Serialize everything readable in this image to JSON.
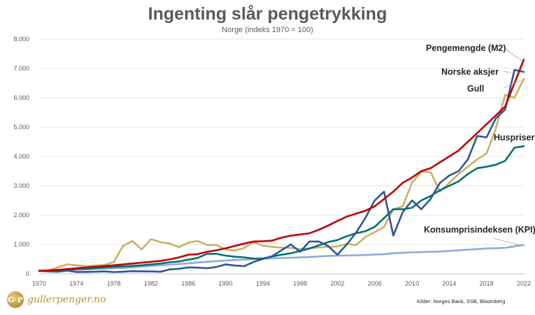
{
  "chart_data": {
    "type": "line",
    "title": "Ingenting slår pengetrykking",
    "subtitle": "Norge (indeks 1970 = 100)",
    "source": "Kilder: Norges Bank, SSB, Bloomberg",
    "logo_text": "gullerpenger.no",
    "logo_mark": "G·P",
    "xlabel": "",
    "ylabel": "",
    "xlim": [
      1970,
      2022
    ],
    "ylim": [
      0,
      8000
    ],
    "x_ticks": [
      "1970",
      "1974",
      "1978",
      "1982",
      "1986",
      "1990",
      "1994",
      "1998",
      "2002",
      "2006",
      "2010",
      "2014",
      "2018",
      "2022"
    ],
    "y_ticks": [
      "0",
      "1.000",
      "2.000",
      "3.000",
      "4.000",
      "5.000",
      "6.000",
      "7.000",
      "8.000"
    ],
    "grid": "horizontal",
    "x": [
      1970,
      1971,
      1972,
      1973,
      1974,
      1975,
      1976,
      1977,
      1978,
      1979,
      1980,
      1981,
      1982,
      1983,
      1984,
      1985,
      1986,
      1987,
      1988,
      1989,
      1990,
      1991,
      1992,
      1993,
      1994,
      1995,
      1996,
      1997,
      1998,
      1999,
      2000,
      2001,
      2002,
      2003,
      2004,
      2005,
      2006,
      2007,
      2008,
      2009,
      2010,
      2011,
      2012,
      2013,
      2014,
      2015,
      2016,
      2017,
      2018,
      2019,
      2020,
      2021,
      2022
    ],
    "series": [
      {
        "name": "Pengemengde (M2)",
        "color": "#c00000",
        "values": [
          100,
          115,
          135,
          160,
          190,
          215,
          240,
          265,
          290,
          320,
          350,
          380,
          410,
          440,
          490,
          560,
          650,
          670,
          750,
          800,
          870,
          950,
          1030,
          1100,
          1110,
          1130,
          1230,
          1300,
          1340,
          1380,
          1500,
          1640,
          1800,
          1950,
          2050,
          2150,
          2300,
          2550,
          2800,
          3100,
          3280,
          3500,
          3600,
          3800,
          4000,
          4200,
          4500,
          4800,
          5100,
          5400,
          5700,
          6500,
          7300
        ]
      },
      {
        "name": "Norske aksjer",
        "color": "#2f5597",
        "values": [
          100,
          80,
          70,
          110,
          60,
          65,
          70,
          80,
          60,
          70,
          90,
          80,
          80,
          70,
          150,
          170,
          220,
          210,
          190,
          230,
          320,
          280,
          260,
          400,
          510,
          600,
          800,
          1000,
          750,
          1100,
          1100,
          950,
          650,
          1000,
          1400,
          1900,
          2500,
          2800,
          1300,
          2100,
          2500,
          2200,
          2550,
          3100,
          3350,
          3500,
          3900,
          4700,
          4650,
          5300,
          5600,
          6950,
          6880
        ]
      },
      {
        "name": "Gull",
        "color": "#c9b161",
        "values": [
          100,
          120,
          220,
          320,
          290,
          260,
          280,
          300,
          400,
          950,
          1120,
          830,
          1180,
          1080,
          1030,
          910,
          1060,
          1120,
          980,
          980,
          830,
          790,
          880,
          1080,
          960,
          920,
          890,
          880,
          840,
          870,
          900,
          920,
          930,
          1020,
          980,
          1250,
          1420,
          1600,
          2200,
          2300,
          3100,
          3480,
          3470,
          2800,
          3100,
          3400,
          3650,
          3900,
          4100,
          4950,
          6100,
          6000,
          6650
        ]
      },
      {
        "name": "Huspriser",
        "color": "#007070",
        "values": [
          100,
          110,
          125,
          140,
          160,
          175,
          195,
          215,
          235,
          250,
          270,
          290,
          320,
          350,
          390,
          420,
          480,
          540,
          680,
          680,
          620,
          580,
          560,
          520,
          520,
          590,
          650,
          700,
          780,
          860,
          970,
          1080,
          1150,
          1280,
          1380,
          1450,
          1600,
          1900,
          2200,
          2200,
          2250,
          2500,
          2650,
          2850,
          3000,
          3150,
          3400,
          3600,
          3650,
          3720,
          3850,
          4300,
          4350
        ]
      },
      {
        "name": "Konsumprisindeksen (KPI)",
        "color": "#8eaadb",
        "values": [
          100,
          106,
          113,
          121,
          132,
          147,
          161,
          176,
          190,
          199,
          220,
          245,
          270,
          290,
          310,
          330,
          355,
          385,
          410,
          430,
          455,
          470,
          480,
          500,
          510,
          525,
          535,
          550,
          560,
          575,
          590,
          610,
          620,
          625,
          630,
          640,
          655,
          670,
          700,
          715,
          730,
          740,
          750,
          760,
          780,
          800,
          825,
          840,
          865,
          875,
          885,
          935,
          985
        ]
      }
    ],
    "series_labels": [
      "Pengemengde (M2)",
      "Norske aksjer",
      "Gull",
      "Huspriser",
      "Konsumprisindeksen (KPI)"
    ]
  }
}
